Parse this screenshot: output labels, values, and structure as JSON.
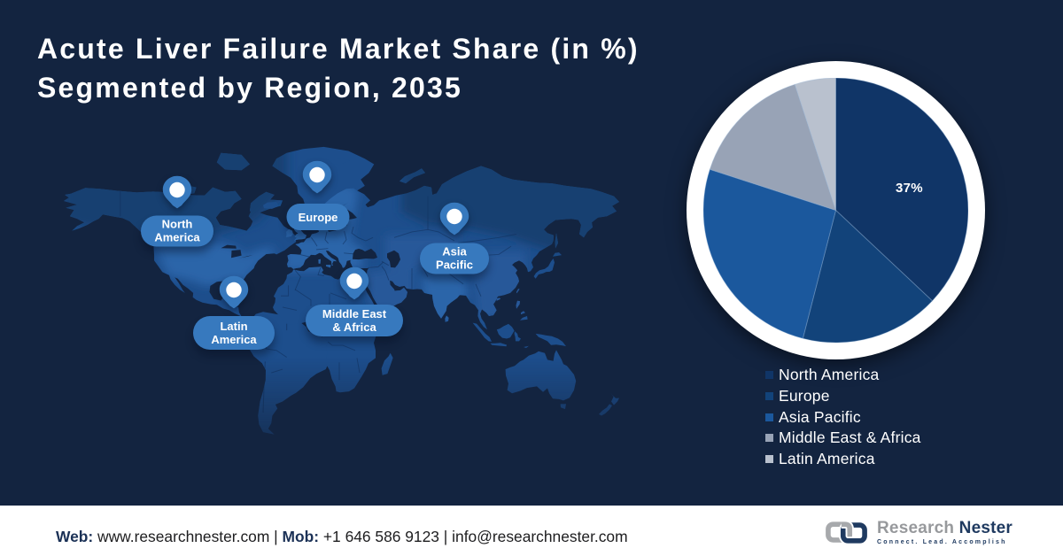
{
  "header": {
    "title_line1": "Acute Liver Failure Market Share (in %)",
    "title_line2": "Segmented by Region, 2035"
  },
  "map": {
    "pins": [
      {
        "lines": [
          "North",
          "America"
        ]
      },
      {
        "lines": [
          "Europe"
        ]
      },
      {
        "lines": [
          "Asia",
          "Pacific"
        ]
      },
      {
        "lines": [
          "Middle East",
          "& Africa"
        ]
      },
      {
        "lines": [
          "Latin",
          "America"
        ]
      }
    ]
  },
  "chart_data": {
    "type": "pie",
    "categories": [
      "North America",
      "Europe",
      "Asia Pacific",
      "Middle East & Africa",
      "Latin America"
    ],
    "values": [
      37,
      17,
      26,
      15,
      5
    ],
    "colors": [
      "#103567",
      "#12437a",
      "#1b589d",
      "#98a3b6",
      "#b9c1ce"
    ],
    "data_label": "37%",
    "data_label_slice": "North America",
    "start_angle": 0,
    "direction": "clockwise",
    "legend_position": "bottom-right",
    "title": ""
  },
  "footer": {
    "web_label": "Web:",
    "web_value": "www.researchnester.com",
    "sep1": "|",
    "mob_label": "Mob:",
    "mob_value": "+1 646 586 9123",
    "sep2": "|",
    "email": "info@researchnester.com"
  },
  "logo": {
    "name_part1": "Research",
    "name_part2": "Nester",
    "tagline": "Connect. Lead. Accomplish"
  },
  "colors": {
    "background": "#132440",
    "map_land": "#1d4e8c",
    "map_land_light": "#2f6ab0",
    "pin": "#3779be",
    "footer_label": "#1b3156",
    "slice_na": "#113768",
    "slice_europe": "#15457b",
    "slice_apac": "#1b5797",
    "slice_mea": "#98a3b6",
    "slice_latam": "#b9c1ce"
  }
}
